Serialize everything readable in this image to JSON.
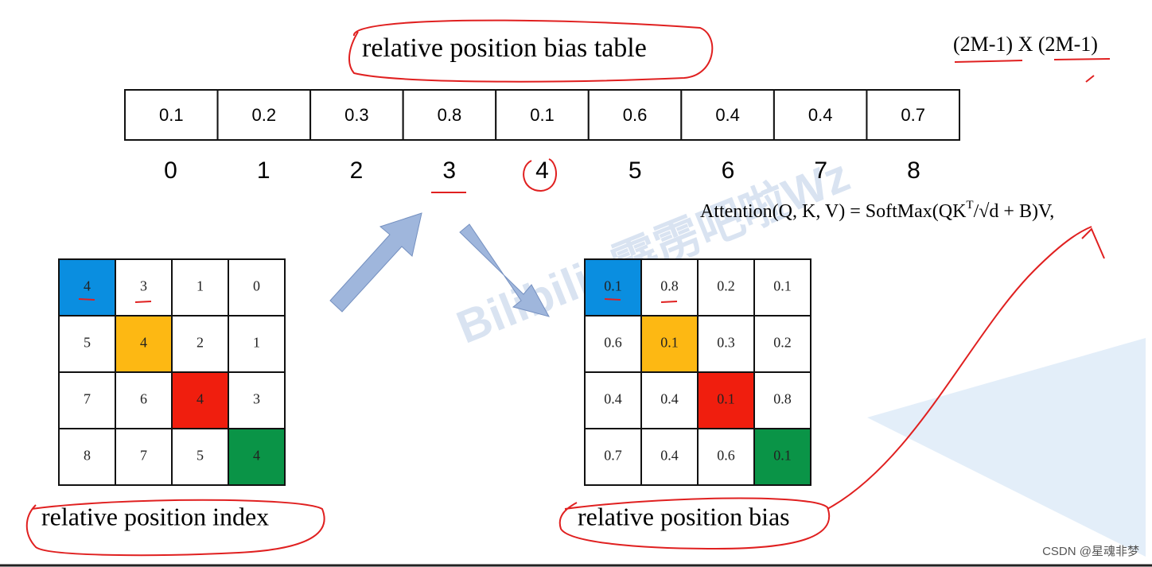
{
  "header": {
    "title": "relative position bias table",
    "size": "(2M-1) X (2M-1)"
  },
  "table": {
    "values": [
      "0.1",
      "0.2",
      "0.3",
      "0.8",
      "0.1",
      "0.6",
      "0.4",
      "0.4",
      "0.7"
    ],
    "indices": [
      "0",
      "1",
      "2",
      "3",
      "4",
      "5",
      "6",
      "7",
      "8"
    ]
  },
  "formula": [
    "Attention(Q, K, V) = SoftMax(QK",
    "T",
    "/√d + B)V,"
  ],
  "index_grid": {
    "rows": [
      [
        "4",
        "3",
        "1",
        "0"
      ],
      [
        "5",
        "4",
        "2",
        "1"
      ],
      [
        "7",
        "6",
        "4",
        "3"
      ],
      [
        "8",
        "7",
        "5",
        "4"
      ]
    ],
    "label": "relative position index"
  },
  "bias_grid": {
    "rows": [
      [
        "0.1",
        "0.8",
        "0.2",
        "0.1"
      ],
      [
        "0.6",
        "0.1",
        "0.3",
        "0.2"
      ],
      [
        "0.4",
        "0.4",
        "0.1",
        "0.8"
      ],
      [
        "0.7",
        "0.4",
        "0.6",
        "0.1"
      ]
    ],
    "label": "relative position bias"
  },
  "watermark": "Bilibili: 霹雳吧啦Wz",
  "footer": "CSDN @星魂非梦"
}
